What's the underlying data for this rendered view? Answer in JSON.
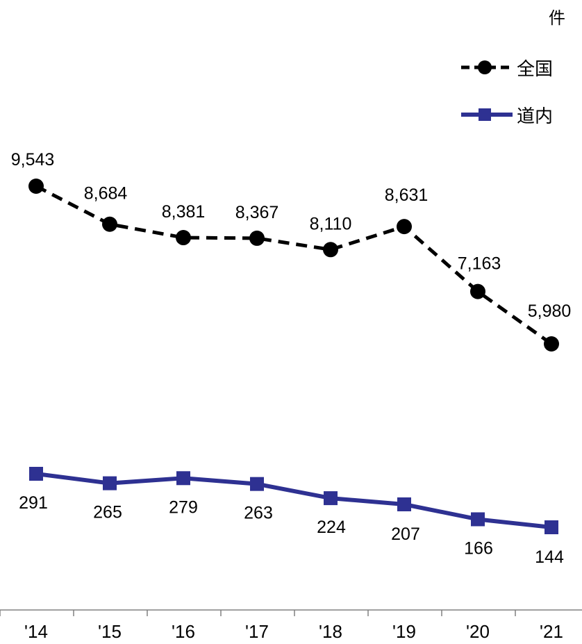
{
  "chart_data": {
    "type": "line",
    "unit": "件",
    "categories": [
      "'14",
      "'15",
      "'16",
      "'17",
      "'18",
      "'19",
      "'20",
      "'21"
    ],
    "series": [
      {
        "name": "全国",
        "values": [
          9543,
          8684,
          8381,
          8367,
          8110,
          8631,
          7163,
          5980
        ],
        "labels": [
          "9,543",
          "8,684",
          "8,381",
          "8,367",
          "8,110",
          "8,631",
          "7,163",
          "5,980"
        ],
        "color": "#000000",
        "line_style": "dashed",
        "marker": "circle"
      },
      {
        "name": "道内",
        "values": [
          291,
          265,
          279,
          263,
          224,
          207,
          166,
          144
        ],
        "labels": [
          "291",
          "265",
          "279",
          "263",
          "224",
          "207",
          "166",
          "144"
        ],
        "color": "#2E3192",
        "line_style": "solid",
        "marker": "square"
      }
    ],
    "legend_position": "top-right",
    "grid": false,
    "y_axis_visible": false,
    "axis_break": true
  }
}
